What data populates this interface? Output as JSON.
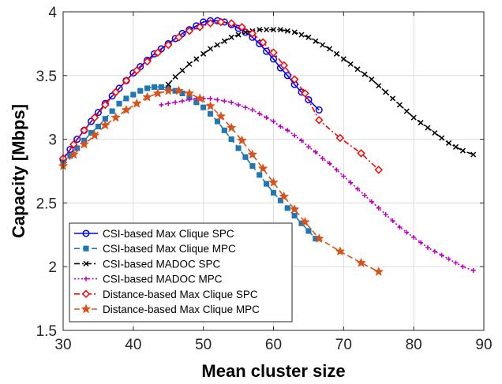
{
  "chart_data": {
    "type": "line",
    "title": "",
    "xlabel": "Mean cluster size",
    "ylabel": "Capacity [Mbps]",
    "xlim": [
      30,
      90
    ],
    "ylim": [
      1.5,
      4
    ],
    "xticks": [
      "30",
      "40",
      "50",
      "60",
      "70",
      "80",
      "90"
    ],
    "yticks": [
      "1.5",
      "2",
      "2.5",
      "3",
      "3.5",
      "4"
    ],
    "grid": true,
    "legend_position": "bottom-left",
    "series": [
      {
        "name": "CSI-based Max Clique SPC",
        "color": "#0000FF",
        "dash": "solid",
        "marker": "circle",
        "x": [
          30,
          31,
          32,
          33,
          34,
          35,
          36,
          37,
          38,
          39,
          40,
          41,
          42,
          43,
          44,
          45,
          46,
          47,
          48,
          49,
          50,
          51,
          52,
          53,
          54,
          55,
          56,
          57,
          58,
          59,
          60,
          61,
          62,
          63,
          64,
          65,
          66.5
        ],
        "y": [
          2.84,
          2.92,
          3.0,
          3.07,
          3.14,
          3.21,
          3.28,
          3.34,
          3.4,
          3.46,
          3.52,
          3.57,
          3.62,
          3.67,
          3.71,
          3.75,
          3.79,
          3.83,
          3.86,
          3.89,
          3.92,
          3.93,
          3.93,
          3.92,
          3.9,
          3.87,
          3.84,
          3.8,
          3.75,
          3.69,
          3.63,
          3.56,
          3.5,
          3.43,
          3.37,
          3.31,
          3.23
        ]
      },
      {
        "name": "CSI-based Max Clique MPC",
        "color": "#1F77B4",
        "dash": "dashed",
        "marker": "square",
        "x": [
          30,
          31,
          32,
          33,
          34,
          35,
          36,
          37,
          38,
          39,
          40,
          41,
          42,
          43,
          44,
          45,
          46,
          47,
          48,
          49,
          50,
          51,
          52,
          53,
          54,
          55,
          56,
          57,
          58,
          59,
          60,
          61,
          62,
          63,
          64,
          65,
          66
        ],
        "y": [
          2.81,
          2.87,
          2.93,
          2.99,
          3.05,
          3.1,
          3.16,
          3.22,
          3.28,
          3.32,
          3.35,
          3.38,
          3.4,
          3.41,
          3.41,
          3.4,
          3.38,
          3.36,
          3.33,
          3.29,
          3.25,
          3.2,
          3.14,
          3.07,
          3.0,
          2.93,
          2.86,
          2.79,
          2.72,
          2.65,
          2.58,
          2.52,
          2.46,
          2.4,
          2.34,
          2.28,
          2.22
        ]
      },
      {
        "name": "CSI-based MADOC SPC",
        "color": "#000000",
        "dash": "dashdot",
        "marker": "x",
        "x": [
          45,
          46,
          47,
          48,
          49,
          50,
          51,
          52,
          53,
          54,
          55,
          56,
          57,
          58,
          59,
          60,
          61,
          62,
          63,
          64,
          65,
          66,
          67,
          68,
          69,
          70,
          71,
          72,
          73,
          74,
          75,
          76,
          77,
          78,
          79,
          80,
          81,
          82,
          83,
          84,
          85,
          86,
          87,
          88.5
        ],
        "y": [
          3.43,
          3.49,
          3.54,
          3.59,
          3.63,
          3.67,
          3.71,
          3.74,
          3.77,
          3.8,
          3.82,
          3.84,
          3.85,
          3.86,
          3.86,
          3.86,
          3.86,
          3.85,
          3.84,
          3.82,
          3.8,
          3.77,
          3.74,
          3.71,
          3.67,
          3.63,
          3.59,
          3.55,
          3.51,
          3.47,
          3.42,
          3.37,
          3.32,
          3.27,
          3.22,
          3.17,
          3.13,
          3.09,
          3.05,
          3.01,
          2.97,
          2.94,
          2.91,
          2.88
        ]
      },
      {
        "name": "CSI-based MADOC MPC",
        "color": "#BF00BF",
        "dash": "dotted",
        "marker": "plus",
        "x": [
          44,
          45,
          46,
          47,
          48,
          49,
          50,
          51,
          52,
          53,
          54,
          55,
          56,
          57,
          58,
          59,
          60,
          61,
          62,
          63,
          64,
          65,
          66,
          67,
          68,
          69,
          70,
          71,
          72,
          73,
          74,
          75,
          76,
          77,
          78,
          79,
          80,
          81,
          82,
          83,
          84,
          85,
          86,
          87,
          88.5
        ],
        "y": [
          3.27,
          3.28,
          3.29,
          3.3,
          3.31,
          3.32,
          3.32,
          3.32,
          3.31,
          3.3,
          3.29,
          3.27,
          3.25,
          3.23,
          3.2,
          3.17,
          3.14,
          3.1,
          3.07,
          3.03,
          2.99,
          2.94,
          2.9,
          2.85,
          2.81,
          2.76,
          2.71,
          2.66,
          2.61,
          2.56,
          2.51,
          2.46,
          2.41,
          2.36,
          2.31,
          2.27,
          2.23,
          2.19,
          2.15,
          2.12,
          2.09,
          2.06,
          2.03,
          2.0,
          1.97
        ]
      },
      {
        "name": "Distance-based Max Clique SPC",
        "color": "#FF0000",
        "dash": "dashdot",
        "marker": "diamond",
        "x": [
          30,
          31.5,
          33,
          34.5,
          36,
          37.5,
          39,
          40.5,
          42,
          43.5,
          45,
          46.5,
          48,
          49.5,
          51,
          52.5,
          54,
          55.5,
          57,
          58.5,
          60,
          61.5,
          63,
          64.5,
          66.5,
          69.5,
          72.5,
          75
        ],
        "y": [
          2.85,
          2.96,
          3.07,
          3.17,
          3.27,
          3.37,
          3.46,
          3.54,
          3.61,
          3.68,
          3.74,
          3.8,
          3.85,
          3.88,
          3.91,
          3.92,
          3.91,
          3.88,
          3.83,
          3.76,
          3.68,
          3.58,
          3.47,
          3.36,
          3.15,
          3.01,
          2.89,
          2.76
        ]
      },
      {
        "name": "Distance-based Max Clique MPC",
        "color": "#D95319",
        "dash": "dashed",
        "marker": "star",
        "x": [
          30,
          31.5,
          33,
          34.5,
          36,
          37.5,
          39,
          40.5,
          42,
          43.5,
          45,
          46.5,
          48,
          49.5,
          51,
          52.5,
          54,
          55.5,
          57,
          58.5,
          60,
          61.5,
          63,
          64.5,
          66.5,
          69.5,
          72.5,
          75
        ],
        "y": [
          2.79,
          2.88,
          2.96,
          3.03,
          3.11,
          3.17,
          3.23,
          3.28,
          3.33,
          3.36,
          3.38,
          3.38,
          3.36,
          3.32,
          3.26,
          3.18,
          3.09,
          2.99,
          2.88,
          2.77,
          2.66,
          2.55,
          2.45,
          2.35,
          2.22,
          2.12,
          2.03,
          1.96
        ]
      }
    ]
  }
}
